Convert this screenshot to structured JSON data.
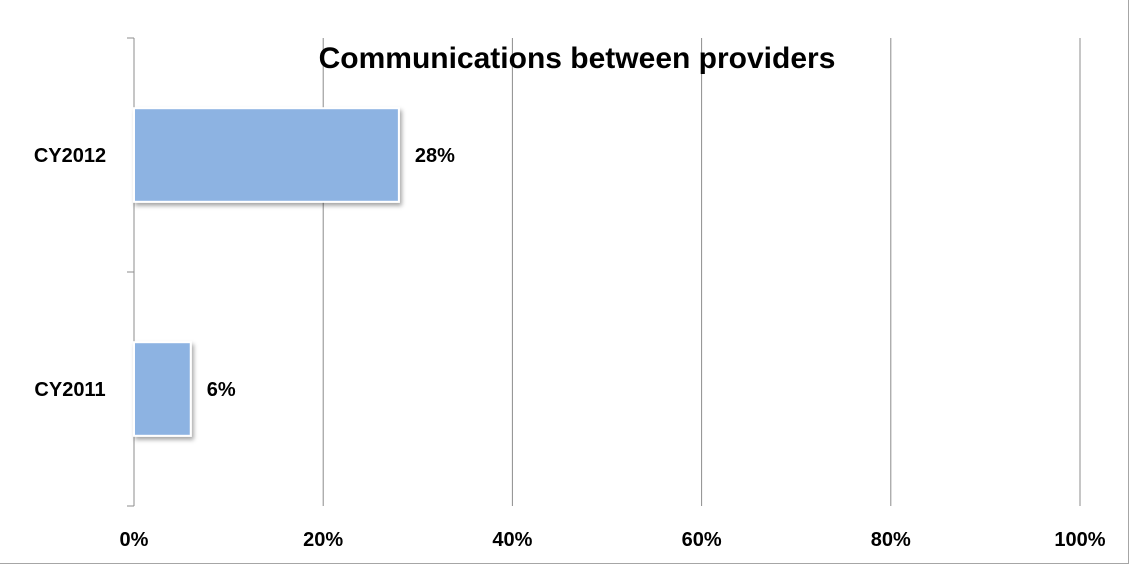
{
  "chart_data": {
    "type": "bar",
    "orientation": "horizontal",
    "title": "Communications between providers",
    "categories": [
      "CY2012",
      "CY2011"
    ],
    "values": [
      28,
      6
    ],
    "data_labels": [
      "28%",
      "6%"
    ],
    "xlim": [
      0,
      100
    ],
    "x_ticks": [
      0,
      20,
      40,
      60,
      80,
      100
    ],
    "x_tick_labels": [
      "0%",
      "20%",
      "40%",
      "60%",
      "80%",
      "100%"
    ],
    "xlabel": "",
    "ylabel": "",
    "grid": true,
    "legend": "none",
    "bar_color": "#8db3e2",
    "bar_edge_color": "#ffffff",
    "grid_color": "#8c8c8c"
  }
}
